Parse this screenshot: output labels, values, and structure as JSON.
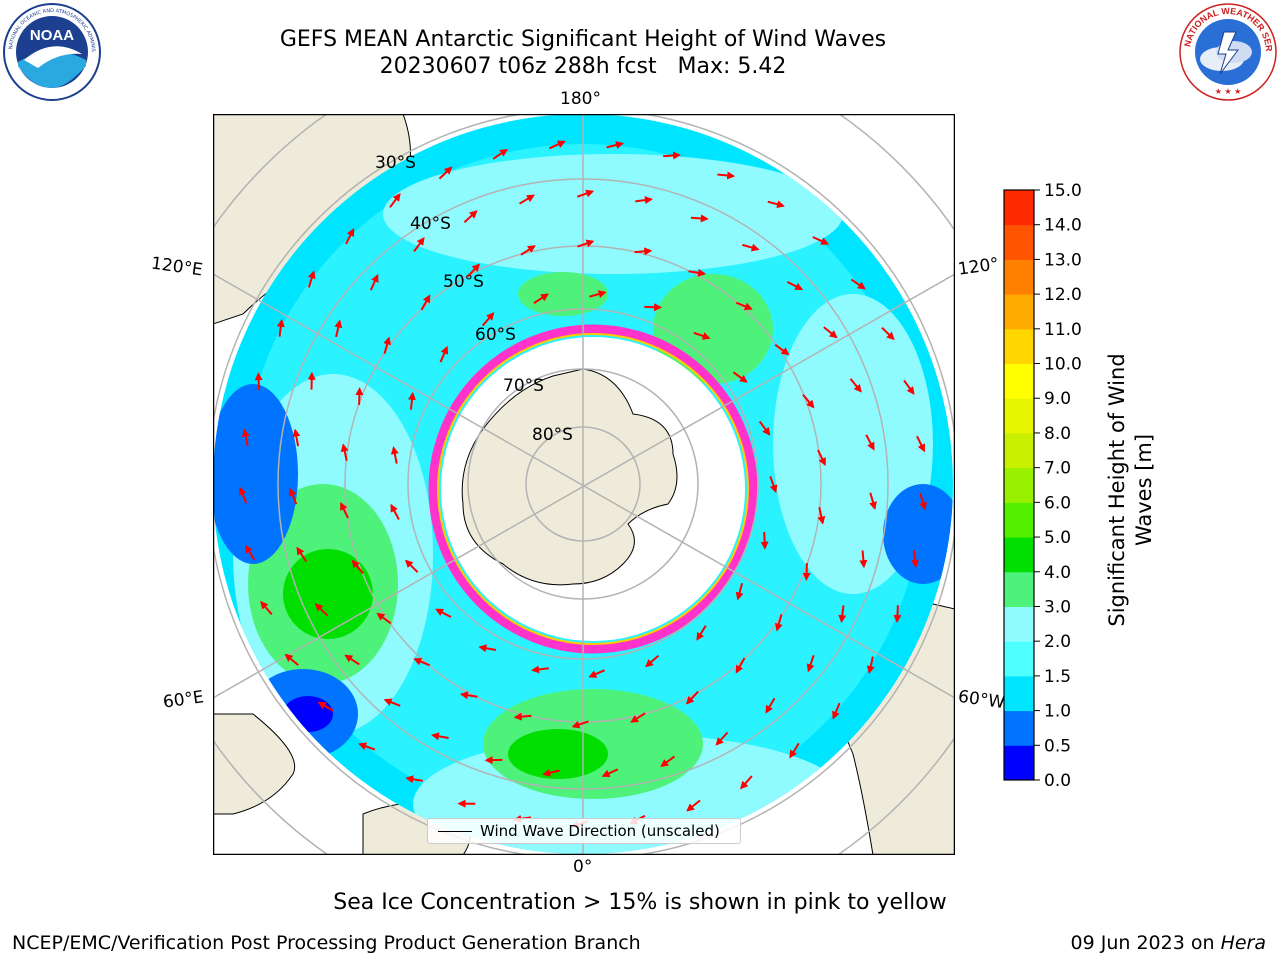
{
  "header": {
    "title_line1": "GEFS MEAN Antarctic Significant Height of Wind Waves",
    "title_line2": "20230607 t06z 288h fcst   Max: 5.42"
  },
  "logos": {
    "left": "NOAA",
    "left_ring_text": "NATIONAL OCEANIC AND ATMOSPHERIC ADMINISTRATION · U.S. DEPARTMENT OF COMMERCE",
    "right_ring_text": "NATIONAL WEATHER SERVICE"
  },
  "map": {
    "projection": "south-polar-stereographic",
    "longitude_labels": {
      "top": "180°",
      "bottom": "0°",
      "left_upper": "120°E",
      "left_lower": "60°E",
      "right_upper": "120°",
      "right_lower": "60°W"
    },
    "latitude_labels": [
      "30°S",
      "40°S",
      "50°S",
      "60°S",
      "70°S",
      "80°S"
    ],
    "colors": {
      "land": "#efebdb",
      "ocean_low": "#00e5ff",
      "ocean_mid": "#8ffbff",
      "ocean_high": "#4ef27a",
      "ocean_peak": "#00df00",
      "deep_low": "#0073ff",
      "ice_edge": "#ff33cc",
      "arrow": "#ff0000",
      "grid": "#b3b3b3"
    },
    "legend_label": "Wind Wave Direction (unscaled)"
  },
  "colorbar": {
    "title_line1": "Significant Height of Wind",
    "title_line2": "Waves [m]",
    "tick_labels": [
      "0.0",
      "0.5",
      "1.0",
      "1.5",
      "2.0",
      "3.0",
      "4.0",
      "5.0",
      "6.0",
      "7.0",
      "8.0",
      "9.0",
      "10.0",
      "11.0",
      "12.0",
      "13.0",
      "14.0",
      "15.0"
    ],
    "colors": [
      "#0000ff",
      "#0073ff",
      "#00e5ff",
      "#4dffff",
      "#8ffbff",
      "#4ef27a",
      "#00df00",
      "#55f000",
      "#99f000",
      "#c8f000",
      "#e8f500",
      "#ffff00",
      "#ffd600",
      "#ffaa00",
      "#ff8000",
      "#ff5500",
      "#ff2a00",
      "#ff0000"
    ]
  },
  "footer": {
    "ice_note": "Sea Ice Concentration > 15% is shown in pink to yellow",
    "credit": "NCEP/EMC/Verification Post Processing Product Generation Branch",
    "run_date": "09 Jun 2023 on ",
    "run_host": "Hera"
  }
}
